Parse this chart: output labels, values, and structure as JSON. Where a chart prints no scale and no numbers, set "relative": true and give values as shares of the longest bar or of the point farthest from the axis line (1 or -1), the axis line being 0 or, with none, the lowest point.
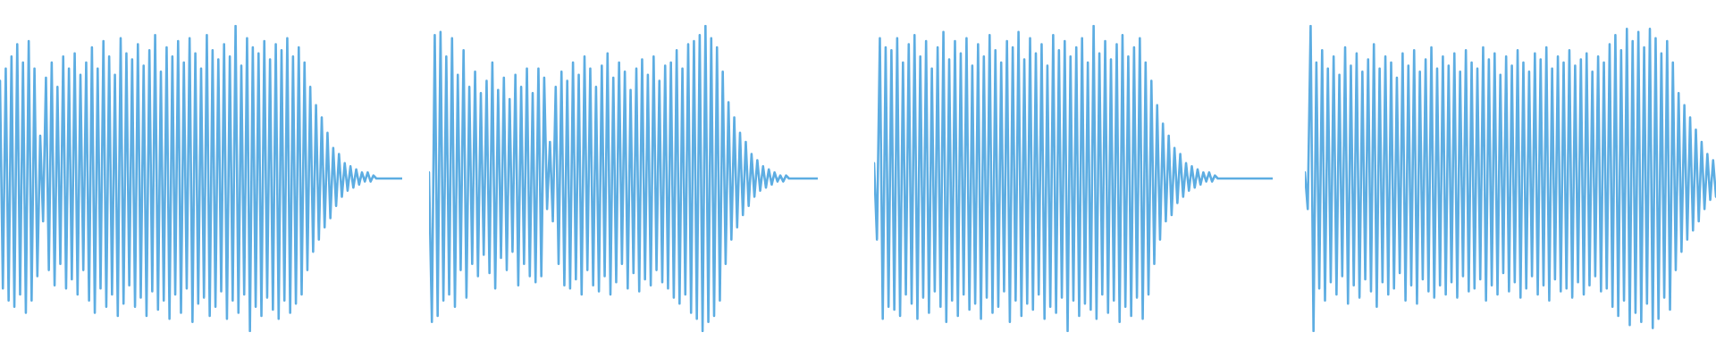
{
  "chart_data": [
    {
      "type": "line",
      "relative": true,
      "marker": "none",
      "categories": [
        null,
        null,
        null,
        null,
        null,
        null,
        null,
        null,
        null,
        null,
        null,
        null,
        null,
        null,
        null,
        null,
        null,
        null,
        null,
        null,
        null,
        null,
        null,
        null,
        null,
        null,
        null,
        null,
        null,
        null,
        null,
        null,
        null,
        null,
        null,
        null,
        null,
        null,
        null,
        null,
        null,
        null,
        null,
        null,
        null,
        null,
        null,
        null,
        null,
        null,
        null,
        null,
        null,
        null,
        null,
        null,
        null,
        null,
        null,
        null,
        null,
        null,
        null,
        null,
        null,
        null,
        null,
        null,
        null,
        null,
        null,
        null,
        null,
        null,
        null,
        null,
        null,
        null,
        null,
        null,
        null,
        null,
        null,
        null,
        null,
        null,
        null,
        null,
        null,
        null,
        null,
        null,
        null,
        null,
        null,
        null,
        null,
        null,
        null,
        null,
        null,
        null,
        null,
        null,
        null,
        null,
        null,
        null,
        null,
        null,
        null,
        null,
        null,
        null,
        null,
        null,
        null,
        null,
        null,
        null,
        null,
        null,
        null,
        null,
        null,
        null,
        null,
        null,
        null,
        null,
        null,
        null,
        null,
        null,
        null,
        null,
        null,
        null,
        null,
        null,
        null
      ],
      "series": [
        {
          "color": "#5dade2",
          "values": [
            0.82,
            0.14,
            0.86,
            0.1,
            0.9,
            0.08,
            0.94,
            0.12,
            0.88,
            0.06,
            0.95,
            0.1,
            0.86,
            0.18,
            0.64,
            0.36,
            0.83,
            0.2,
            0.88,
            0.15,
            0.8,
            0.22,
            0.9,
            0.14,
            0.86,
            0.17,
            0.91,
            0.12,
            0.84,
            0.2,
            0.88,
            0.1,
            0.93,
            0.06,
            0.86,
            0.14,
            0.95,
            0.08,
            0.9,
            0.12,
            0.84,
            0.05,
            0.96,
            0.09,
            0.91,
            0.15,
            0.89,
            0.08,
            0.94,
            0.11,
            0.87,
            0.05,
            0.92,
            0.13,
            0.97,
            0.07,
            0.85,
            0.1,
            0.93,
            0.04,
            0.9,
            0.12,
            0.95,
            0.06,
            0.88,
            0.14,
            0.96,
            0.03,
            0.91,
            0.09,
            0.86,
            0.11,
            0.97,
            0.05,
            0.92,
            0.08,
            0.89,
            0.13,
            0.94,
            0.04,
            0.9,
            0.1,
            1,
            0.06,
            0.87,
            0.12,
            0.96,
            0,
            0.93,
            0.08,
            0.91,
            0.05,
            0.95,
            0.11,
            0.89,
            0.07,
            0.94,
            0.04,
            0.92,
            0.1,
            0.96,
            0.06,
            0.9,
            0.09,
            0.93,
            0.12,
            0.88,
            0.2,
            0.8,
            0.26,
            0.74,
            0.3,
            0.7,
            0.34,
            0.65,
            0.37,
            0.6,
            0.41,
            0.58,
            0.44,
            0.55,
            0.46,
            0.54,
            0.47,
            0.53,
            0.48,
            0.52,
            0.49,
            0.52,
            0.49,
            0.51,
            0.5,
            0.5,
            0.5,
            0.5,
            0.5,
            0.5,
            0.5,
            0.5,
            0.5,
            0.5
          ]
        }
      ]
    },
    {
      "type": "line",
      "relative": true,
      "marker": "none",
      "categories": [
        null,
        null,
        null,
        null,
        null,
        null,
        null,
        null,
        null,
        null,
        null,
        null,
        null,
        null,
        null,
        null,
        null,
        null,
        null,
        null,
        null,
        null,
        null,
        null,
        null,
        null,
        null,
        null,
        null,
        null,
        null,
        null,
        null,
        null,
        null,
        null,
        null,
        null,
        null,
        null,
        null,
        null,
        null,
        null,
        null,
        null,
        null,
        null,
        null,
        null,
        null,
        null,
        null,
        null,
        null,
        null,
        null,
        null,
        null,
        null,
        null,
        null,
        null,
        null,
        null,
        null,
        null,
        null,
        null,
        null,
        null,
        null,
        null,
        null,
        null,
        null,
        null,
        null,
        null,
        null,
        null,
        null,
        null,
        null,
        null,
        null,
        null,
        null,
        null,
        null,
        null,
        null,
        null,
        null,
        null,
        null,
        null,
        null,
        null,
        null,
        null,
        null,
        null,
        null,
        null,
        null,
        null,
        null,
        null,
        null,
        null,
        null,
        null,
        null,
        null,
        null,
        null,
        null,
        null,
        null,
        null,
        null,
        null,
        null,
        null,
        null,
        null,
        null,
        null,
        null,
        null,
        null,
        null,
        null,
        null,
        null
      ],
      "series": [
        {
          "color": "#5dade2",
          "values": [
            0.52,
            0.03,
            0.97,
            0.05,
            0.98,
            0.1,
            0.9,
            0.12,
            0.96,
            0.08,
            0.84,
            0.2,
            0.92,
            0.11,
            0.8,
            0.22,
            0.85,
            0.18,
            0.78,
            0.25,
            0.82,
            0.19,
            0.88,
            0.14,
            0.79,
            0.24,
            0.83,
            0.2,
            0.76,
            0.26,
            0.84,
            0.15,
            0.8,
            0.22,
            0.86,
            0.18,
            0.78,
            0.16,
            0.86,
            0.18,
            0.83,
            0.4,
            0.62,
            0.36,
            0.8,
            0.22,
            0.85,
            0.15,
            0.82,
            0.14,
            0.88,
            0.17,
            0.84,
            0.12,
            0.9,
            0.2,
            0.86,
            0.15,
            0.8,
            0.13,
            0.87,
            0.18,
            0.91,
            0.12,
            0.83,
            0.16,
            0.88,
            0.22,
            0.85,
            0.14,
            0.79,
            0.19,
            0.86,
            0.13,
            0.89,
            0.17,
            0.84,
            0.15,
            0.9,
            0.2,
            0.82,
            0.16,
            0.87,
            0.14,
            0.88,
            0.11,
            0.92,
            0.09,
            0.86,
            0.12,
            0.94,
            0.06,
            0.95,
            0.04,
            0.97,
            0,
            1,
            0.03,
            0.96,
            0.05,
            0.93,
            0.1,
            0.85,
            0.22,
            0.75,
            0.3,
            0.7,
            0.34,
            0.65,
            0.38,
            0.62,
            0.41,
            0.58,
            0.44,
            0.56,
            0.46,
            0.54,
            0.47,
            0.53,
            0.48,
            0.52,
            0.49,
            0.51,
            0.49,
            0.51,
            0.5,
            0.5,
            0.5,
            0.5,
            0.5,
            0.5,
            0.5,
            0.5,
            0.5,
            0.5,
            0.5
          ]
        }
      ]
    },
    {
      "type": "line",
      "relative": true,
      "marker": "none",
      "categories": [
        null,
        null,
        null,
        null,
        null,
        null,
        null,
        null,
        null,
        null,
        null,
        null,
        null,
        null,
        null,
        null,
        null,
        null,
        null,
        null,
        null,
        null,
        null,
        null,
        null,
        null,
        null,
        null,
        null,
        null,
        null,
        null,
        null,
        null,
        null,
        null,
        null,
        null,
        null,
        null,
        null,
        null,
        null,
        null,
        null,
        null,
        null,
        null,
        null,
        null,
        null,
        null,
        null,
        null,
        null,
        null,
        null,
        null,
        null,
        null,
        null,
        null,
        null,
        null,
        null,
        null,
        null,
        null,
        null,
        null,
        null,
        null,
        null,
        null,
        null,
        null,
        null,
        null,
        null,
        null,
        null,
        null,
        null,
        null,
        null,
        null,
        null,
        null,
        null,
        null,
        null,
        null,
        null,
        null,
        null,
        null,
        null,
        null,
        null,
        null,
        null,
        null,
        null,
        null,
        null,
        null,
        null,
        null,
        null,
        null,
        null,
        null,
        null,
        null,
        null,
        null,
        null,
        null,
        null,
        null,
        null,
        null,
        null,
        null,
        null,
        null,
        null,
        null,
        null,
        null,
        null,
        null,
        null,
        null,
        null,
        null,
        null,
        null,
        null
      ],
      "series": [
        {
          "color": "#5dade2",
          "values": [
            0.55,
            0.3,
            0.96,
            0.04,
            0.93,
            0.08,
            0.92,
            0.07,
            0.96,
            0.05,
            0.88,
            0.12,
            0.94,
            0.09,
            0.97,
            0.04,
            0.9,
            0.11,
            0.95,
            0.06,
            0.86,
            0.13,
            0.93,
            0.08,
            0.98,
            0.03,
            0.89,
            0.1,
            0.95,
            0.05,
            0.91,
            0.12,
            0.96,
            0.07,
            0.87,
            0.09,
            0.94,
            0.04,
            0.9,
            0.11,
            0.97,
            0.06,
            0.92,
            0.08,
            0.88,
            0.13,
            0.95,
            0.03,
            0.93,
            0.1,
            0.98,
            0.05,
            0.89,
            0.09,
            0.96,
            0.07,
            0.91,
            0.12,
            0.94,
            0.04,
            0.87,
            0.08,
            0.97,
            0.06,
            0.92,
            0.11,
            0.95,
            0,
            0.9,
            0.1,
            0.93,
            0.05,
            0.96,
            0.09,
            0.88,
            0.07,
            1,
            0.04,
            0.91,
            0.12,
            0.95,
            0.06,
            0.89,
            0.1,
            0.94,
            0.03,
            0.97,
            0.08,
            0.9,
            0.05,
            0.93,
            0.11,
            0.96,
            0.04,
            0.88,
            0.12,
            0.82,
            0.22,
            0.74,
            0.3,
            0.68,
            0.36,
            0.64,
            0.38,
            0.6,
            0.42,
            0.58,
            0.44,
            0.55,
            0.46,
            0.54,
            0.47,
            0.53,
            0.48,
            0.52,
            0.49,
            0.52,
            0.49,
            0.51,
            0.5,
            0.5,
            0.5,
            0.5,
            0.5,
            0.5,
            0.5,
            0.5,
            0.5,
            0.5,
            0.5,
            0.5,
            0.5,
            0.5,
            0.5,
            0.5,
            0.5,
            0.5,
            0.5,
            0.5
          ]
        }
      ]
    },
    {
      "type": "line",
      "relative": true,
      "marker": "none",
      "categories": [
        null,
        null,
        null,
        null,
        null,
        null,
        null,
        null,
        null,
        null,
        null,
        null,
        null,
        null,
        null,
        null,
        null,
        null,
        null,
        null,
        null,
        null,
        null,
        null,
        null,
        null,
        null,
        null,
        null,
        null,
        null,
        null,
        null,
        null,
        null,
        null,
        null,
        null,
        null,
        null,
        null,
        null,
        null,
        null,
        null,
        null,
        null,
        null,
        null,
        null,
        null,
        null,
        null,
        null,
        null,
        null,
        null,
        null,
        null,
        null,
        null,
        null,
        null,
        null,
        null,
        null,
        null,
        null,
        null,
        null,
        null,
        null,
        null,
        null,
        null,
        null,
        null,
        null,
        null,
        null,
        null,
        null,
        null,
        null,
        null,
        null,
        null,
        null,
        null,
        null,
        null,
        null,
        null,
        null,
        null,
        null,
        null,
        null,
        null,
        null,
        null,
        null,
        null,
        null,
        null,
        null,
        null,
        null,
        null,
        null,
        null,
        null,
        null,
        null,
        null,
        null,
        null,
        null,
        null,
        null,
        null,
        null,
        null,
        null,
        null,
        null,
        null,
        null,
        null,
        null,
        null,
        null,
        null,
        null,
        null,
        null,
        null,
        null,
        null,
        null,
        null,
        null,
        null,
        null
      ],
      "series": [
        {
          "color": "#5dade2",
          "values": [
            0.52,
            0.4,
            1,
            0,
            0.88,
            0.14,
            0.92,
            0.1,
            0.86,
            0.16,
            0.9,
            0.12,
            0.84,
            0.18,
            0.93,
            0.09,
            0.87,
            0.15,
            0.91,
            0.11,
            0.85,
            0.17,
            0.89,
            0.13,
            0.94,
            0.08,
            0.86,
            0.16,
            0.9,
            0.12,
            0.88,
            0.14,
            0.83,
            0.19,
            0.91,
            0.1,
            0.87,
            0.15,
            0.92,
            0.09,
            0.85,
            0.17,
            0.89,
            0.13,
            0.93,
            0.11,
            0.86,
            0.15,
            0.9,
            0.12,
            0.87,
            0.16,
            0.91,
            0.11,
            0.85,
            0.18,
            0.92,
            0.13,
            0.88,
            0.14,
            0.86,
            0.17,
            0.93,
            0.1,
            0.89,
            0.15,
            0.91,
            0.12,
            0.84,
            0.19,
            0.9,
            0.13,
            0.87,
            0.16,
            0.92,
            0.11,
            0.88,
            0.14,
            0.85,
            0.18,
            0.91,
            0.12,
            0.89,
            0.15,
            0.93,
            0.1,
            0.86,
            0.17,
            0.9,
            0.13,
            0.88,
            0.14,
            0.92,
            0.11,
            0.87,
            0.16,
            0.89,
            0.12,
            0.91,
            0.15,
            0.85,
            0.18,
            0.9,
            0.13,
            0.88,
            0.14,
            0.94,
            0.08,
            0.97,
            0.05,
            0.92,
            0.1,
            0.99,
            0.02,
            0.95,
            0.06,
            0.98,
            0.03,
            0.93,
            0.09,
            0.99,
            0.01,
            0.96,
            0.04,
            0.91,
            0.11,
            0.95,
            0.07,
            0.88,
            0.2,
            0.78,
            0.26,
            0.74,
            0.3,
            0.7,
            0.33,
            0.66,
            0.36,
            0.62,
            0.4,
            0.58,
            0.43,
            0.56,
            0.44
          ]
        }
      ]
    }
  ]
}
